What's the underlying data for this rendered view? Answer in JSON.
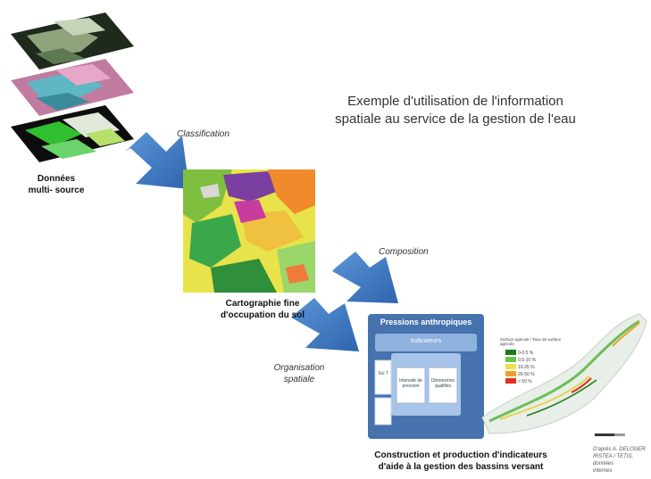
{
  "title": {
    "line1": "Exemple d'utilisation de l'information",
    "line2": "spatiale au service de la gestion de l'eau"
  },
  "labels": {
    "source_data": {
      "line1": "Données",
      "line2": "multi- source"
    },
    "classification": "Classification",
    "landcover": {
      "line1": "Cartographie fine",
      "line2": "d'occupation du sol"
    },
    "composition": "Composition",
    "spatial_org": {
      "line1": "Organisation",
      "line2": "spatiale"
    },
    "indicators": {
      "line1": "Construction et production d'indicateurs",
      "line2": "d'aide à la gestion des bassins versant"
    }
  },
  "panel": {
    "title": "Pressions anthropiques",
    "sub_header": "Indicateurs",
    "left_box": "Sol T",
    "center_left_box": "Intensité de pression",
    "center_right_box": "Dimensions qualifiés"
  },
  "map_legend": {
    "title": "Surface agricole / Taux de surface agricole",
    "entries": [
      "0-0.5 %",
      "0.5-10 %",
      "10-25 %",
      "25-50 %",
      "> 50 %"
    ],
    "colors": [
      "#1a7a1a",
      "#6cc04a",
      "#e8e34a",
      "#f0a02a",
      "#e0301e"
    ]
  },
  "credit": {
    "line1": "D'après A. DELOGER",
    "line2": "IRSTEA / TETIS, données",
    "line3": "internes"
  },
  "colors": {
    "arrow": "#3f7fc8",
    "panel": "#4672ae",
    "panel_inner": "#8fb1de"
  }
}
